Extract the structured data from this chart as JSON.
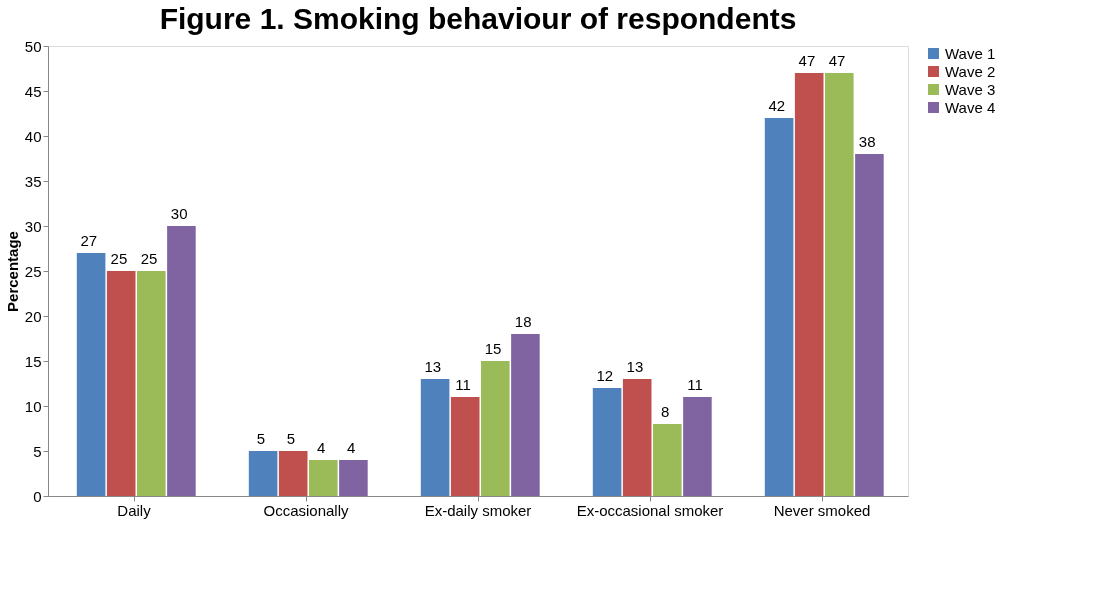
{
  "chart_data": {
    "type": "bar",
    "title": "Figure 1. Smoking behaviour of respondents",
    "ylabel": "Percentage",
    "categories": [
      "Daily",
      "Occasionally",
      "Ex-daily smoker",
      "Ex-occasional smoker",
      "Never smoked"
    ],
    "series": [
      {
        "name": "Wave 1",
        "color": "#4f81bd",
        "values": [
          27,
          5,
          13,
          12,
          42
        ]
      },
      {
        "name": "Wave 2",
        "color": "#c0504d",
        "values": [
          25,
          5,
          11,
          13,
          47
        ]
      },
      {
        "name": "Wave 3",
        "color": "#9bbb59",
        "values": [
          25,
          4,
          15,
          8,
          47
        ]
      },
      {
        "name": "Wave 4",
        "color": "#8064a2",
        "values": [
          30,
          4,
          18,
          11,
          38
        ]
      }
    ],
    "ylim": [
      0,
      50
    ],
    "yticks": [
      0,
      5,
      10,
      15,
      20,
      25,
      30,
      35,
      40,
      45,
      50
    ],
    "data_labels": true,
    "grid": false,
    "legend": "right"
  }
}
